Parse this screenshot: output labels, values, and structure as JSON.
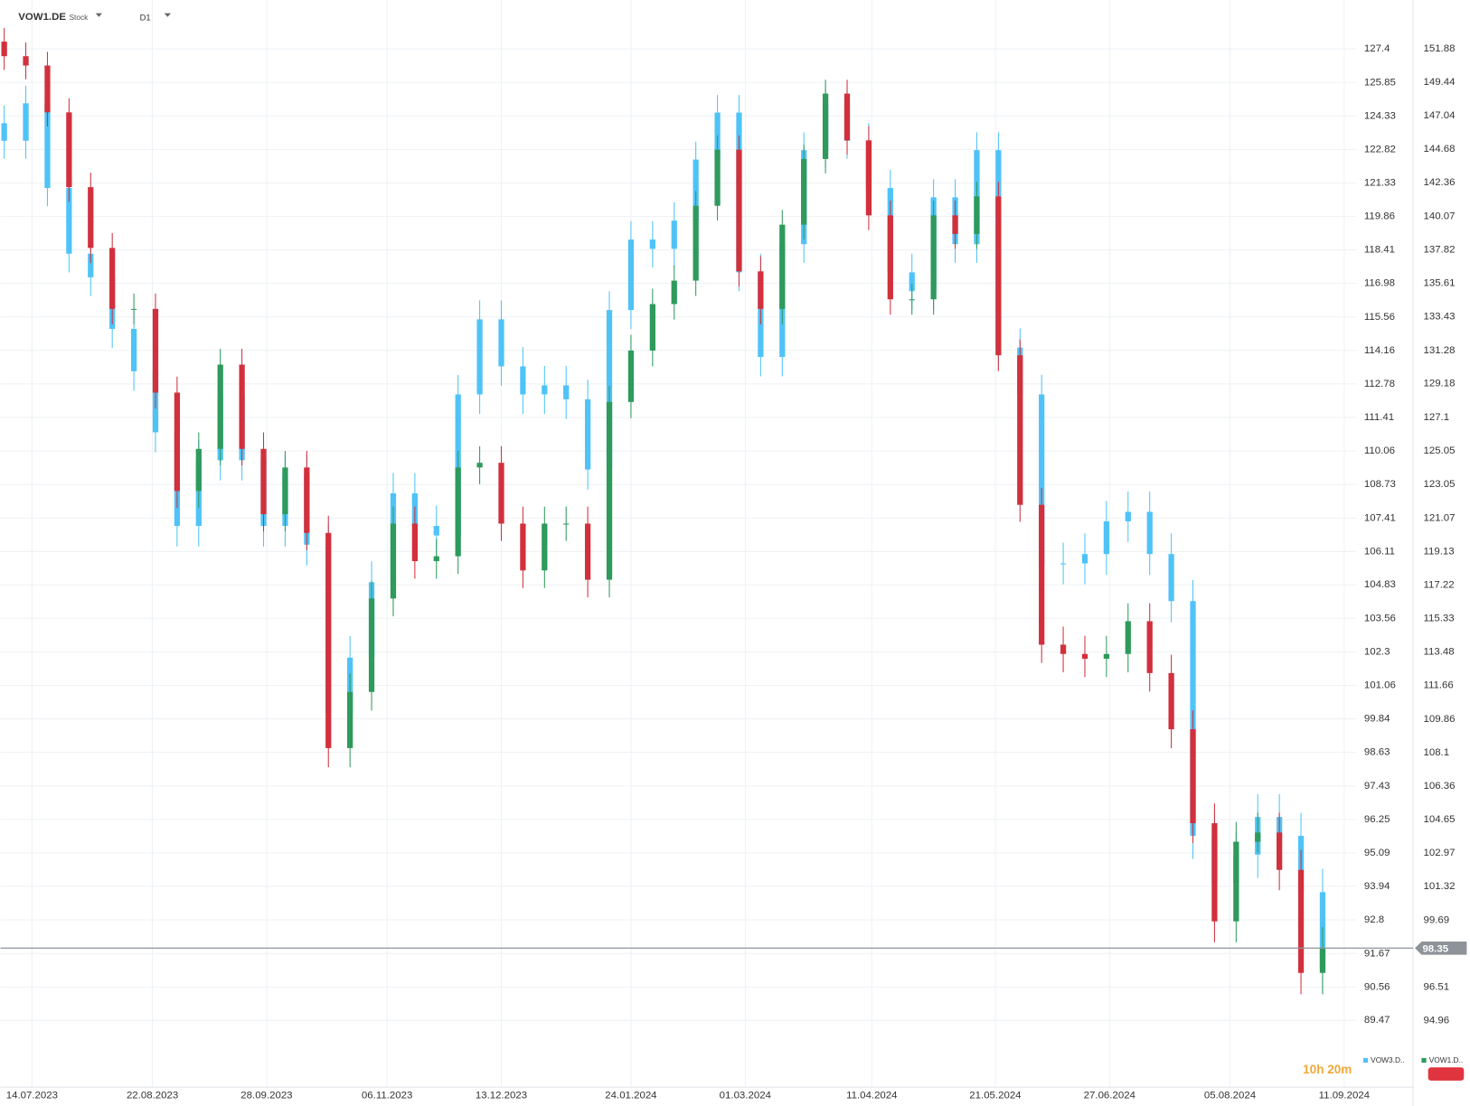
{
  "chart_data": {
    "type": "candlestick",
    "title": "VOW1.DE",
    "subtitle": "Stock",
    "timeframe": "D1",
    "countdown": "10h 20m",
    "log_scale": true,
    "grid": true,
    "current_price": 98.35,
    "x": [
      "2023-07-05",
      "2023-07-12",
      "2023-07-19",
      "2023-07-26",
      "2023-08-02",
      "2023-08-09",
      "2023-08-16",
      "2023-08-23",
      "2023-08-30",
      "2023-09-06",
      "2023-09-13",
      "2023-09-20",
      "2023-09-27",
      "2023-10-04",
      "2023-10-11",
      "2023-10-18",
      "2023-10-25",
      "2023-11-01",
      "2023-11-08",
      "2023-11-15",
      "2023-11-22",
      "2023-11-29",
      "2023-12-06",
      "2023-12-13",
      "2023-12-20",
      "2023-12-27",
      "2024-01-03",
      "2024-01-10",
      "2024-01-17",
      "2024-01-24",
      "2024-01-31",
      "2024-02-07",
      "2024-02-14",
      "2024-02-21",
      "2024-02-28",
      "2024-03-06",
      "2024-03-13",
      "2024-03-20",
      "2024-03-27",
      "2024-04-03",
      "2024-04-10",
      "2024-04-17",
      "2024-04-24",
      "2024-05-01",
      "2024-05-08",
      "2024-05-15",
      "2024-05-22",
      "2024-05-29",
      "2024-06-05",
      "2024-06-12",
      "2024-06-19",
      "2024-06-26",
      "2024-07-03",
      "2024-07-10",
      "2024-07-17",
      "2024-07-24",
      "2024-07-31",
      "2024-08-07",
      "2024-08-14",
      "2024-08-21",
      "2024-08-28",
      "2024-09-04"
    ],
    "xlim": [
      "2023-07-05",
      "2024-09-15"
    ],
    "xticks": [
      {
        "value": "2023-07-14",
        "label": "14.07.2023"
      },
      {
        "value": "2023-08-22",
        "label": "22.08.2023"
      },
      {
        "value": "2023-09-28",
        "label": "28.09.2023"
      },
      {
        "value": "2023-11-06",
        "label": "06.11.2023"
      },
      {
        "value": "2023-12-13",
        "label": "13.12.2023"
      },
      {
        "value": "2024-01-24",
        "label": "24.01.2024"
      },
      {
        "value": "2024-03-01",
        "label": "01.03.2024"
      },
      {
        "value": "2024-04-11",
        "label": "11.04.2024"
      },
      {
        "value": "2024-05-21",
        "label": "21.05.2024"
      },
      {
        "value": "2024-06-27",
        "label": "27.06.2024"
      },
      {
        "value": "2024-08-05",
        "label": "05.08.2024"
      },
      {
        "value": "2024-09-11",
        "label": "11.09.2024"
      }
    ],
    "ylim": [
      87.47,
      129.24
    ],
    "yticks": [
      127.4,
      125.85,
      124.33,
      122.82,
      121.33,
      119.86,
      118.41,
      116.98,
      115.56,
      114.16,
      112.78,
      111.41,
      110.06,
      108.73,
      107.41,
      106.11,
      104.83,
      103.56,
      102.3,
      101.06,
      99.84,
      98.63,
      97.43,
      96.25,
      95.09,
      93.94,
      92.8,
      91.67,
      90.56,
      89.47
    ],
    "y2lim": [
      92.17,
      154.79
    ],
    "y2ticks": [
      151.88,
      149.44,
      147.04,
      144.68,
      142.36,
      140.07,
      137.82,
      135.61,
      133.43,
      131.28,
      129.18,
      127.1,
      125.05,
      123.05,
      121.07,
      119.13,
      117.22,
      115.33,
      113.48,
      111.66,
      109.86,
      108.1,
      106.36,
      104.65,
      102.97,
      101.32,
      99.69,
      96.51,
      94.96
    ],
    "series": [
      {
        "name": "VOW3.D..",
        "color": "#4fc3f7",
        "axis": "y",
        "open": [
          124.0,
          123.21,
          124.9,
          121.11,
          118.25,
          117.24,
          115.06,
          113.3,
          110.81,
          107.1,
          109.69,
          112.35,
          109.69,
          107.1,
          109.13,
          106.37,
          100.02,
          102.09,
          104.93,
          108.38,
          107.1,
          106.73,
          112.35,
          115.46,
          113.5,
          112.35,
          112.72,
          112.15,
          109.32,
          115.85,
          118.86,
          118.46,
          119.68,
          122.37,
          124.48,
          117.45,
          113.89,
          118.66,
          122.79,
          124.9,
          123.21,
          121.11,
          117.45,
          116.65,
          120.7,
          118.66,
          122.79,
          114.28,
          112.35,
          105.65,
          105.65,
          106.01,
          107.28,
          107.65,
          106.01,
          104.21,
          95.68,
          94.06,
          95.03,
          96.34,
          95.68,
          93.74
        ],
        "high": [
          124.8,
          125.7,
          125.7,
          121.91,
          119.05,
          118.04,
          115.86,
          114.1,
          111.61,
          110.49,
          113.15,
          113.15,
          110.49,
          109.93,
          109.93,
          107.17,
          102.89,
          105.73,
          109.18,
          109.18,
          107.9,
          113.15,
          116.26,
          116.26,
          114.3,
          113.52,
          113.52,
          112.95,
          116.65,
          119.66,
          119.66,
          120.48,
          123.17,
          125.28,
          125.28,
          118.25,
          119.46,
          123.59,
          125.7,
          125.7,
          124.01,
          121.91,
          118.25,
          121.5,
          121.5,
          123.59,
          123.59,
          115.08,
          113.15,
          106.45,
          106.81,
          108.08,
          108.45,
          108.45,
          106.81,
          105.01,
          96.48,
          95.83,
          97.14,
          97.14,
          96.48,
          94.54
        ],
        "low": [
          122.41,
          122.41,
          120.31,
          117.45,
          116.44,
          114.26,
          112.5,
          110.01,
          106.3,
          106.3,
          108.89,
          108.89,
          106.3,
          106.3,
          105.57,
          99.22,
          99.22,
          101.29,
          104.13,
          106.3,
          105.93,
          105.93,
          111.55,
          112.7,
          111.55,
          111.55,
          111.35,
          108.52,
          108.52,
          115.05,
          117.66,
          117.66,
          118.88,
          121.57,
          116.65,
          113.09,
          113.09,
          117.86,
          121.99,
          122.41,
          120.31,
          116.65,
          115.85,
          115.85,
          117.86,
          117.86,
          113.48,
          111.55,
          104.85,
          104.85,
          104.85,
          105.21,
          106.48,
          105.21,
          103.41,
          94.88,
          93.26,
          93.26,
          94.23,
          94.88,
          92.94,
          90.4
        ],
        "close": [
          123.21,
          124.9,
          121.11,
          118.25,
          117.24,
          115.06,
          113.3,
          110.81,
          107.1,
          109.69,
          112.35,
          109.69,
          107.1,
          109.13,
          106.37,
          100.02,
          102.09,
          104.93,
          108.38,
          107.1,
          106.73,
          112.35,
          115.46,
          113.5,
          112.35,
          112.72,
          112.15,
          109.32,
          115.85,
          118.86,
          118.46,
          119.68,
          122.37,
          124.48,
          117.45,
          113.89,
          118.66,
          122.79,
          124.9,
          123.21,
          121.11,
          117.45,
          116.65,
          120.7,
          118.66,
          122.79,
          114.28,
          112.35,
          105.65,
          105.65,
          106.01,
          107.28,
          107.65,
          106.01,
          104.21,
          95.68,
          94.06,
          95.03,
          96.34,
          95.68,
          93.74,
          91.2
        ]
      },
      {
        "name": "VOW1.D..",
        "up_color": "#2e9a5c",
        "down_color": "#d1303c",
        "axis": "y2",
        "open": [
          152.4,
          151.33,
          150.65,
          147.28,
          142.05,
          137.94,
          133.94,
          133.94,
          128.63,
          122.66,
          125.18,
          130.38,
          125.18,
          121.29,
          124.06,
          120.2,
          108.33,
          111.31,
          116.45,
          120.74,
          118.57,
          118.85,
          124.06,
          124.34,
          120.74,
          118.04,
          120.74,
          120.74,
          117.51,
          128.05,
          131.27,
          134.25,
          135.78,
          140.78,
          144.65,
          136.39,
          133.94,
          139.5,
          144.0,
          148.62,
          145.3,
          140.13,
          134.56,
          134.56,
          140.13,
          138.88,
          141.42,
          130.97,
          121.84,
          113.88,
          113.37,
          113.11,
          113.37,
          115.18,
          112.33,
          109.32,
          104.47,
          99.63,
          103.54,
          104.0,
          102.14,
          97.18
        ],
        "high": [
          153.4,
          152.33,
          151.65,
          148.28,
          143.05,
          138.94,
          134.94,
          134.94,
          129.63,
          126.18,
          131.38,
          131.38,
          126.18,
          125.06,
          125.06,
          121.2,
          112.31,
          117.45,
          121.74,
          121.74,
          119.85,
          125.06,
          125.34,
          125.34,
          121.74,
          121.74,
          121.74,
          121.74,
          129.05,
          132.27,
          135.25,
          136.78,
          141.78,
          145.65,
          145.65,
          137.39,
          140.5,
          145.0,
          149.62,
          149.62,
          146.3,
          141.13,
          135.56,
          141.13,
          141.13,
          142.42,
          142.42,
          131.97,
          122.84,
          114.88,
          114.37,
          114.37,
          116.18,
          116.18,
          113.33,
          110.32,
          105.47,
          104.54,
          105.0,
          105.0,
          103.14,
          99.35
        ],
        "low": [
          150.33,
          149.65,
          146.28,
          141.05,
          136.94,
          132.94,
          132.94,
          127.63,
          121.66,
          121.66,
          124.18,
          124.18,
          120.29,
          120.29,
          119.2,
          107.33,
          107.33,
          110.31,
          115.45,
          117.57,
          117.57,
          117.85,
          123.06,
          119.74,
          117.04,
          117.04,
          119.74,
          116.51,
          116.51,
          127.05,
          130.27,
          133.25,
          134.78,
          139.78,
          135.39,
          132.94,
          132.94,
          138.5,
          143.0,
          144.3,
          139.13,
          133.56,
          133.56,
          133.56,
          137.88,
          137.88,
          129.97,
          120.84,
          112.88,
          112.37,
          112.11,
          112.11,
          112.37,
          111.33,
          108.32,
          103.47,
          98.63,
          98.63,
          103.0,
          101.14,
          96.18,
          96.18
        ],
        "close": [
          151.33,
          150.65,
          147.28,
          142.05,
          137.94,
          133.94,
          133.94,
          128.63,
          122.66,
          125.18,
          130.38,
          125.18,
          121.29,
          124.06,
          120.2,
          108.33,
          111.31,
          116.45,
          120.74,
          118.57,
          118.85,
          124.06,
          124.34,
          120.74,
          118.04,
          120.74,
          120.74,
          117.51,
          128.05,
          131.27,
          134.25,
          135.78,
          140.78,
          144.65,
          136.39,
          133.94,
          139.5,
          144.0,
          148.62,
          145.3,
          140.13,
          134.56,
          134.56,
          140.13,
          138.88,
          141.42,
          130.97,
          121.84,
          113.88,
          113.37,
          113.11,
          113.37,
          115.18,
          112.33,
          109.32,
          104.47,
          99.63,
          103.54,
          104.0,
          102.14,
          97.18,
          98.35
        ]
      }
    ]
  }
}
